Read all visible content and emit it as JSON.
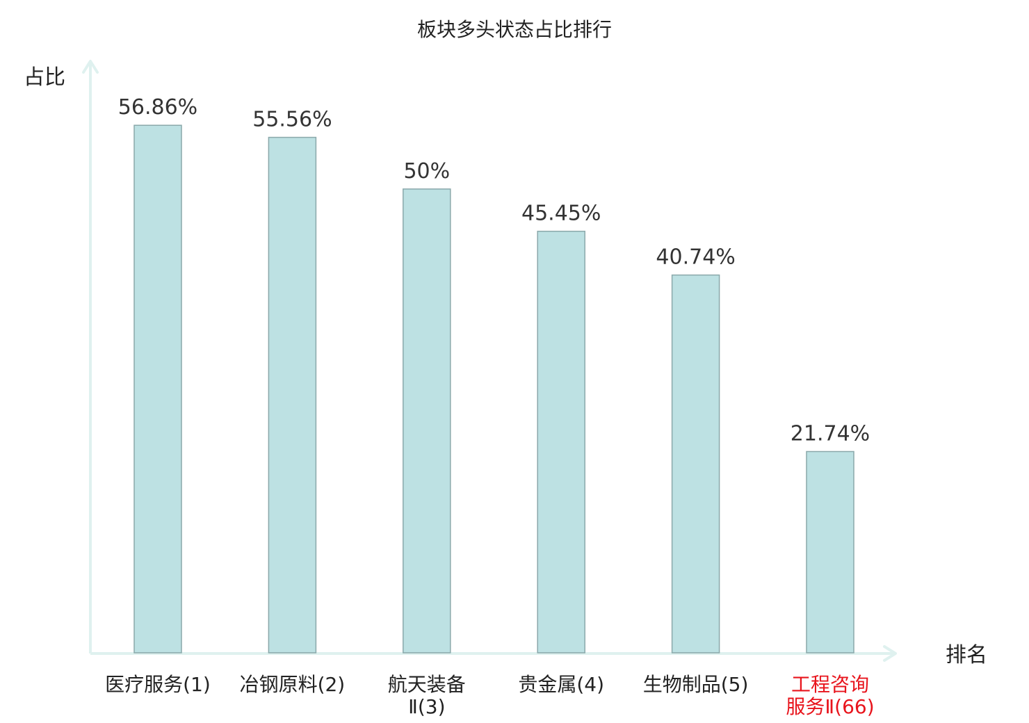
{
  "chart_data": {
    "type": "bar",
    "title": "板块多头状态占比排行",
    "ylabel": "占比",
    "xlabel": "排名",
    "ylim": [
      0,
      60
    ],
    "grid": false,
    "categories": [
      [
        "医疗服务(1)"
      ],
      [
        "冶钢原料(2)"
      ],
      [
        "航天装备",
        "Ⅱ(3)"
      ],
      [
        "贵金属(4)"
      ],
      [
        "生物制品(5)"
      ],
      [
        "工程咨询",
        "服务Ⅱ(66)"
      ]
    ],
    "values": [
      56.86,
      55.56,
      50,
      45.45,
      40.74,
      21.74
    ],
    "value_labels": [
      "56.86%",
      "55.56%",
      "50%",
      "45.45%",
      "40.74%",
      "21.74%"
    ],
    "highlight_index": 5,
    "colors": {
      "bar_fill": "#bde1e3",
      "bar_stroke": "#8aa8aa",
      "axis": "#dff1ef",
      "text": "#333333",
      "label": "#222222",
      "highlight": "#e8141c"
    }
  }
}
